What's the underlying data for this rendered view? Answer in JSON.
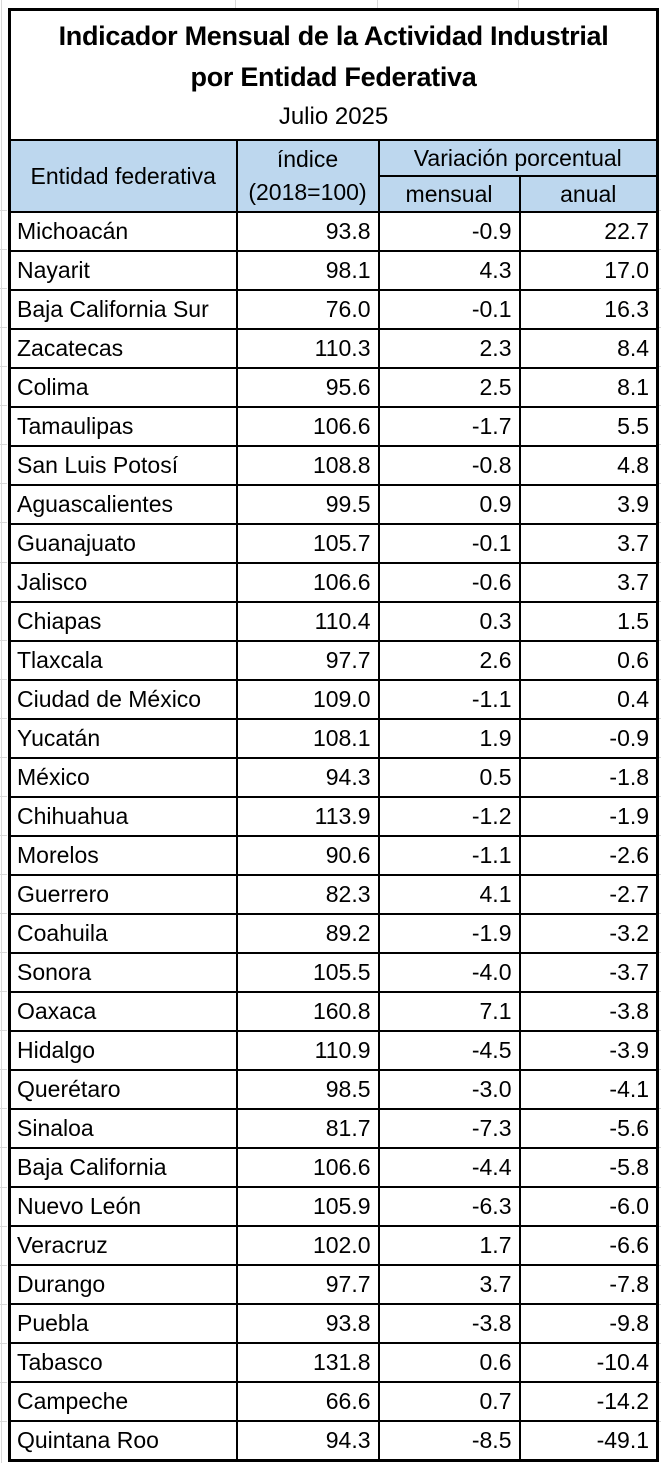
{
  "title": {
    "line1": "Indicador Mensual de la Actividad Industrial",
    "line2": "por Entidad Federativa",
    "period": "Julio 2025"
  },
  "header": {
    "entity": "Entidad federativa",
    "index_line1": "índice",
    "index_line2": "(2018=100)",
    "variation_group": "Variación porcentual",
    "monthly": "mensual",
    "annual": "anual"
  },
  "colors": {
    "header_fill": "#BDD7EE",
    "table_border": "#000000",
    "text": "#000000",
    "background": "#FFFFFF",
    "margin_gridline": "#D8D8D8"
  },
  "chart_data": {
    "type": "table",
    "title": "Indicador Mensual de la Actividad Industrial por Entidad Federativa",
    "subtitle": "Julio 2025",
    "columns": [
      "Entidad federativa",
      "índice (2018=100)",
      "Variación porcentual mensual",
      "Variación porcentual anual"
    ],
    "rows": [
      [
        "Michoacán",
        93.8,
        -0.9,
        22.7
      ],
      [
        "Nayarit",
        98.1,
        4.3,
        17.0
      ],
      [
        "Baja California Sur",
        76.0,
        -0.1,
        16.3
      ],
      [
        "Zacatecas",
        110.3,
        2.3,
        8.4
      ],
      [
        "Colima",
        95.6,
        2.5,
        8.1
      ],
      [
        "Tamaulipas",
        106.6,
        -1.7,
        5.5
      ],
      [
        "San Luis Potosí",
        108.8,
        -0.8,
        4.8
      ],
      [
        "Aguascalientes",
        99.5,
        0.9,
        3.9
      ],
      [
        "Guanajuato",
        105.7,
        -0.1,
        3.7
      ],
      [
        "Jalisco",
        106.6,
        -0.6,
        3.7
      ],
      [
        "Chiapas",
        110.4,
        0.3,
        1.5
      ],
      [
        "Tlaxcala",
        97.7,
        2.6,
        0.6
      ],
      [
        "Ciudad de México",
        109.0,
        -1.1,
        0.4
      ],
      [
        "Yucatán",
        108.1,
        1.9,
        -0.9
      ],
      [
        "México",
        94.3,
        0.5,
        -1.8
      ],
      [
        "Chihuahua",
        113.9,
        -1.2,
        -1.9
      ],
      [
        "Morelos",
        90.6,
        -1.1,
        -2.6
      ],
      [
        "Guerrero",
        82.3,
        4.1,
        -2.7
      ],
      [
        "Coahuila",
        89.2,
        -1.9,
        -3.2
      ],
      [
        "Sonora",
        105.5,
        -4.0,
        -3.7
      ],
      [
        "Oaxaca",
        160.8,
        7.1,
        -3.8
      ],
      [
        "Hidalgo",
        110.9,
        -4.5,
        -3.9
      ],
      [
        "Querétaro",
        98.5,
        -3.0,
        -4.1
      ],
      [
        "Sinaloa",
        81.7,
        -7.3,
        -5.6
      ],
      [
        "Baja California",
        106.6,
        -4.4,
        -5.8
      ],
      [
        "Nuevo León",
        105.9,
        -6.3,
        -6.0
      ],
      [
        "Veracruz",
        102.0,
        1.7,
        -6.6
      ],
      [
        "Durango",
        97.7,
        3.7,
        -7.8
      ],
      [
        "Puebla",
        93.8,
        -3.8,
        -9.8
      ],
      [
        "Tabasco",
        131.8,
        0.6,
        -10.4
      ],
      [
        "Campeche",
        66.6,
        0.7,
        -14.2
      ],
      [
        "Quintana Roo",
        94.3,
        -8.5,
        -49.1
      ]
    ]
  }
}
